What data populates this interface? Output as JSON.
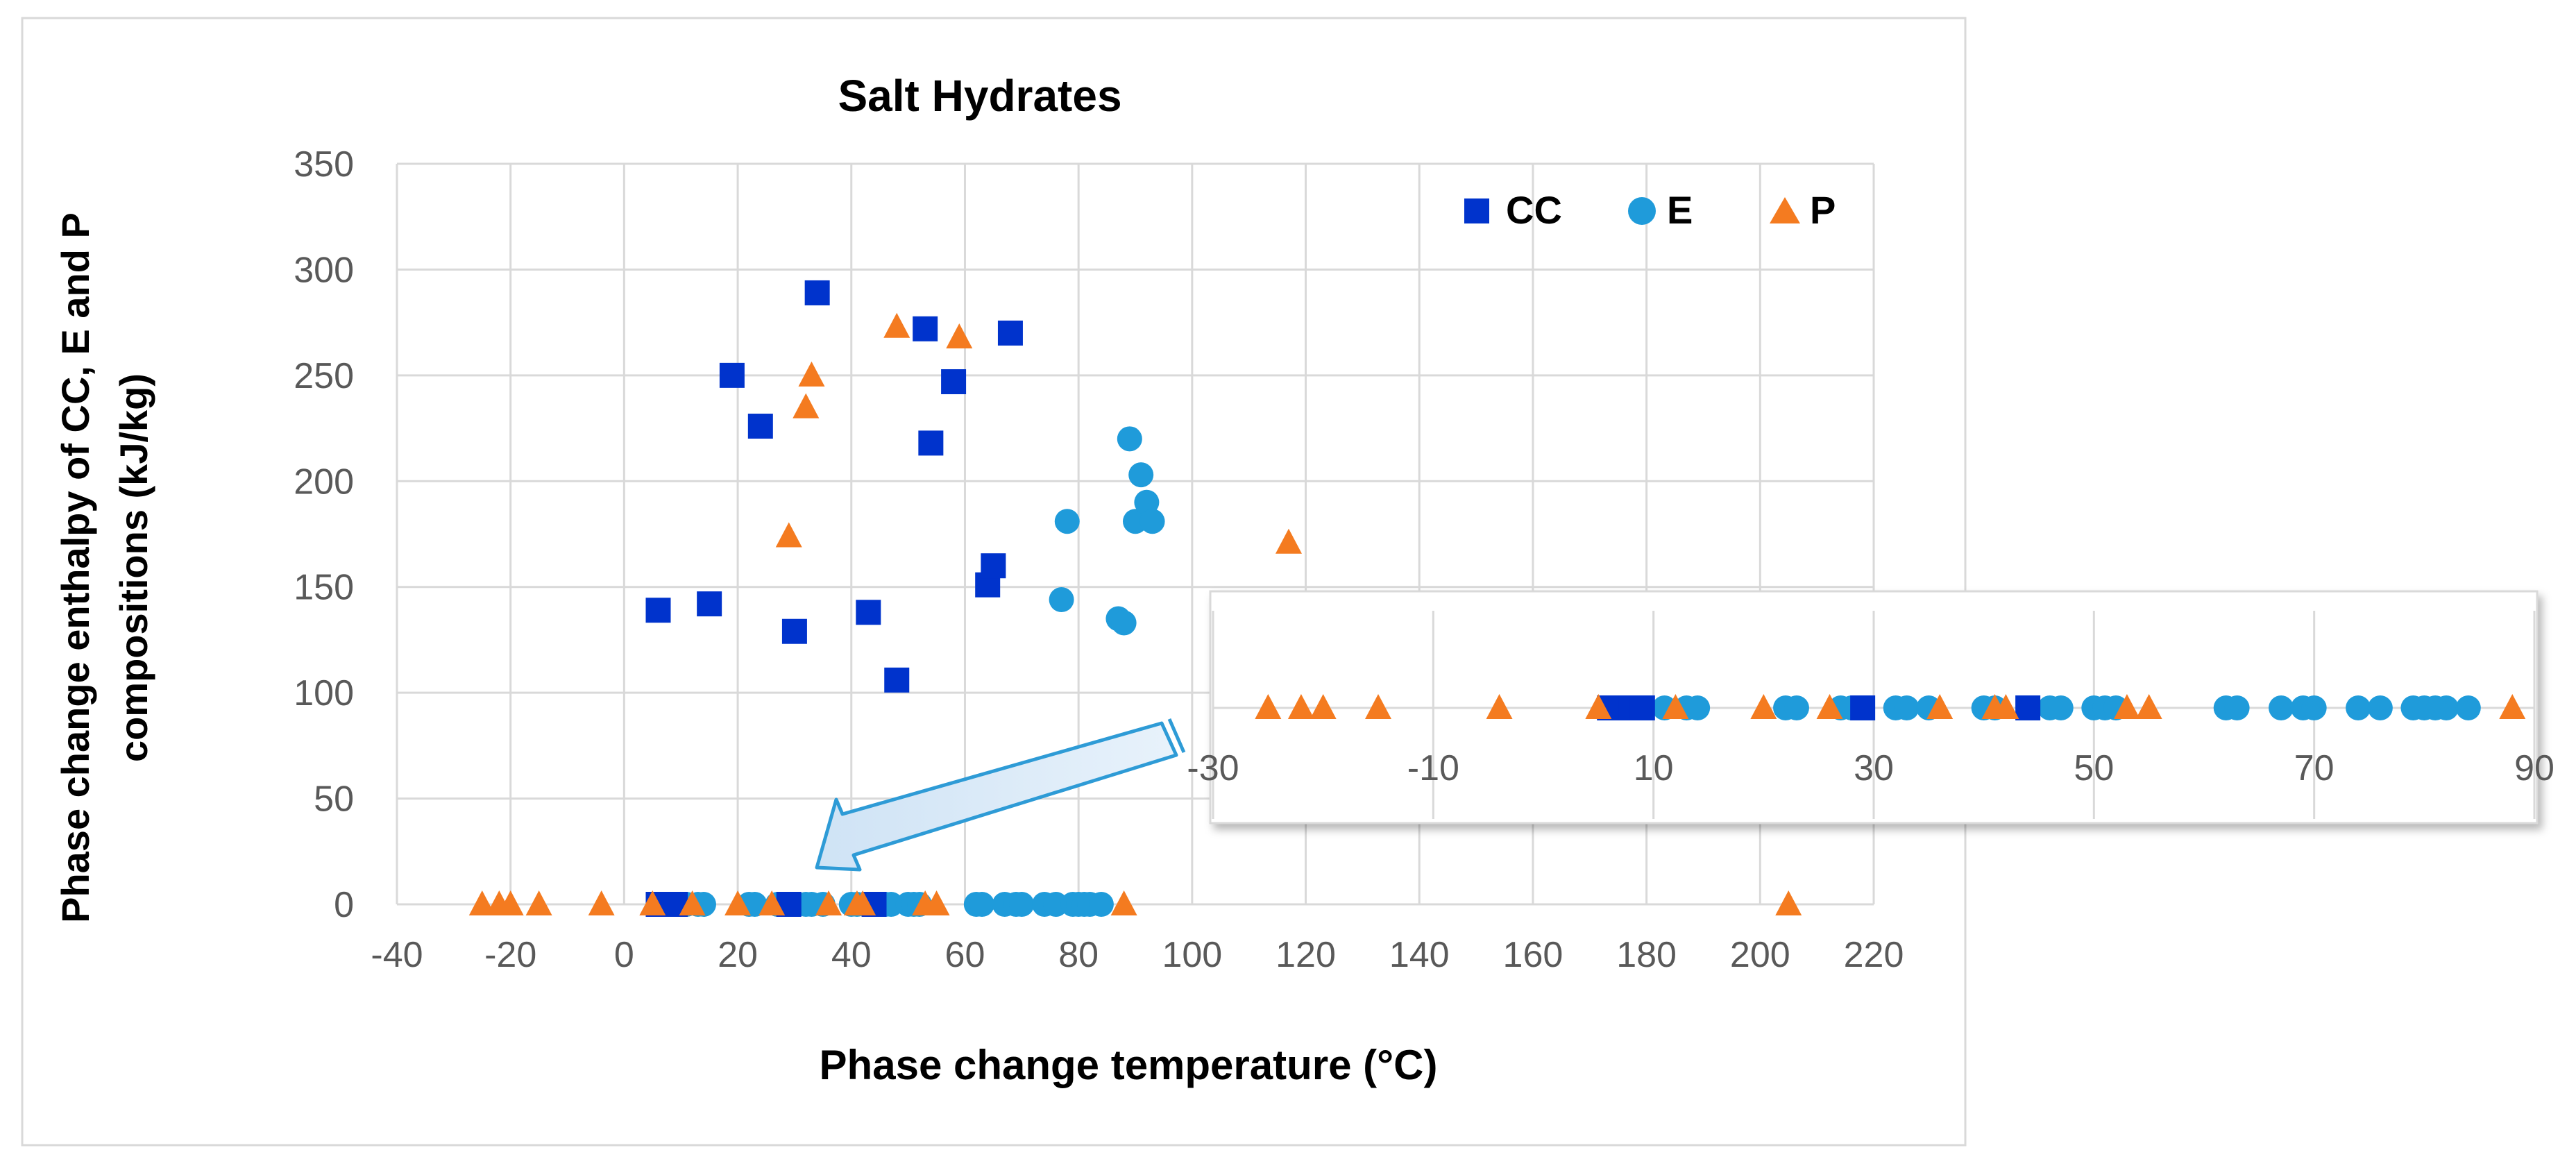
{
  "chart_data": [
    {
      "type": "scatter",
      "title": "Salt Hydrates",
      "xlabel": "Phase change temperature (°C)",
      "ylabel_lines": [
        "Phase change enthalpy of CC, E and P",
        "compositions (kJ/kg)"
      ],
      "xlim": [
        -40,
        220
      ],
      "ylim": [
        0,
        350
      ],
      "xticks": [
        -40,
        -20,
        0,
        20,
        40,
        60,
        80,
        100,
        120,
        140,
        160,
        180,
        200,
        220
      ],
      "yticks": [
        0,
        50,
        100,
        150,
        200,
        250,
        300,
        350
      ],
      "grid": true,
      "legend_position": "top-right",
      "series": [
        {
          "name": "CC",
          "marker": "square",
          "color": "#0033CC",
          "points": [
            [
              6,
              139
            ],
            [
              15,
              142
            ],
            [
              19,
              250
            ],
            [
              24,
              226
            ],
            [
              30,
              129
            ],
            [
              34,
              289
            ],
            [
              43,
              138
            ],
            [
              48,
              106
            ],
            [
              53,
              272
            ],
            [
              54,
              218
            ],
            [
              58,
              247
            ],
            [
              64,
              151
            ],
            [
              65,
              160
            ],
            [
              68,
              270
            ],
            [
              6,
              0
            ],
            [
              7,
              0
            ],
            [
              8,
              0
            ],
            [
              9,
              0
            ],
            [
              29,
              0
            ],
            [
              44,
              0
            ]
          ]
        },
        {
          "name": "E",
          "marker": "circle",
          "color": "#1F9BDA",
          "points": [
            [
              77,
              144
            ],
            [
              78,
              181
            ],
            [
              87,
              135
            ],
            [
              88,
              133
            ],
            [
              89,
              220
            ],
            [
              90,
              181
            ],
            [
              91,
              203
            ],
            [
              92,
              190
            ],
            [
              93,
              181
            ],
            [
              11,
              0
            ],
            [
              13,
              0
            ],
            [
              14,
              0
            ],
            [
              22,
              0
            ],
            [
              23,
              0
            ],
            [
              27,
              0
            ],
            [
              28,
              0
            ],
            [
              32,
              0
            ],
            [
              33,
              0
            ],
            [
              35,
              0
            ],
            [
              40,
              0
            ],
            [
              41,
              0
            ],
            [
              46,
              0
            ],
            [
              47,
              0
            ],
            [
              50,
              0
            ],
            [
              51,
              0
            ],
            [
              52,
              0
            ],
            [
              62,
              0
            ],
            [
              63,
              0
            ],
            [
              67,
              0
            ],
            [
              69,
              0
            ],
            [
              70,
              0
            ],
            [
              74,
              0
            ],
            [
              76,
              0
            ],
            [
              79,
              0
            ],
            [
              80,
              0
            ],
            [
              81,
              0
            ],
            [
              82,
              0
            ],
            [
              84,
              0
            ]
          ]
        },
        {
          "name": "P",
          "marker": "triangle",
          "color": "#F47B20",
          "points": [
            [
              29,
              174
            ],
            [
              32,
              235
            ],
            [
              33,
              250
            ],
            [
              48,
              273
            ],
            [
              59,
              268
            ],
            [
              117,
              171
            ],
            [
              -25,
              0
            ],
            [
              -22,
              0
            ],
            [
              -20,
              0
            ],
            [
              -15,
              0
            ],
            [
              -4,
              0
            ],
            [
              5,
              0
            ],
            [
              12,
              0
            ],
            [
              20,
              0
            ],
            [
              26,
              0
            ],
            [
              36,
              0
            ],
            [
              41,
              0
            ],
            [
              42,
              0
            ],
            [
              53,
              0
            ],
            [
              55,
              0
            ],
            [
              88,
              0
            ],
            [
              205,
              0
            ]
          ]
        }
      ]
    },
    {
      "type": "scatter",
      "role": "inset",
      "xlim": [
        -30,
        90
      ],
      "xticks": [
        -30,
        -10,
        10,
        30,
        50,
        70,
        90
      ],
      "grid": true
    }
  ]
}
